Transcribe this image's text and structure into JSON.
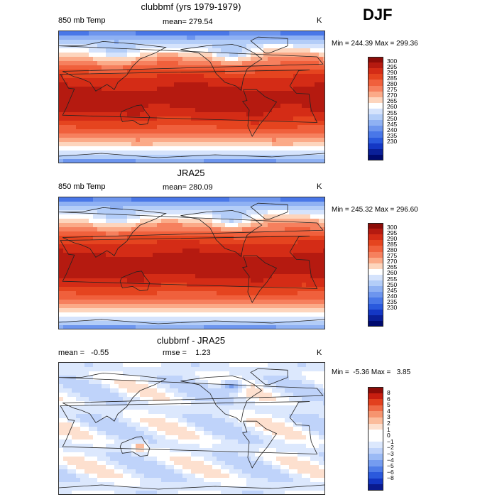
{
  "season_label": "DJF",
  "colors": {
    "warm": [
      "#fff0e6",
      "#fdd0b5",
      "#fbb08f",
      "#f8886a",
      "#f26444",
      "#e94328",
      "#d92d16",
      "#c2240f",
      "#9c1710"
    ],
    "cool": [
      "#e8f0ff",
      "#c7d8fb",
      "#a6c0f7",
      "#84a6f2",
      "#628ced",
      "#4272e6",
      "#2756dc",
      "#163bc4",
      "#0a209a",
      "#000a78"
    ],
    "neutral": "#ffffff"
  },
  "panels": [
    {
      "title": "clubbmf (yrs 1979-1979)",
      "variable": "850 mb Temp",
      "stat_left": "",
      "stat_mid": "mean= 279.54",
      "unit": "K",
      "minmax": "Min = 244.39 Max = 299.36",
      "mode": "abs",
      "colorbar": {
        "labels": [
          "300",
          "295",
          "290",
          "285",
          "280",
          "275",
          "270",
          "265",
          "260",
          "255",
          "250",
          "245",
          "240",
          "235",
          "230"
        ],
        "colors": [
          "#8c0c08",
          "#b51a10",
          "#d42c16",
          "#e5441f",
          "#f0603c",
          "#f6805e",
          "#fbaa88",
          "#fdd5bd",
          "#ffffff",
          "#d5e3fc",
          "#b3cdf8",
          "#8fb1f3",
          "#6d95ee",
          "#4977e8",
          "#2a59dd",
          "#1437c4",
          "#0a1f98",
          "#000a6e"
        ]
      }
    },
    {
      "title": "JRA25",
      "variable": "850 mb Temp",
      "stat_left": "",
      "stat_mid": "mean= 280.09",
      "unit": "K",
      "minmax": "Min = 245.32 Max = 296.60",
      "mode": "abs",
      "colorbar": {
        "labels": [
          "300",
          "295",
          "290",
          "285",
          "280",
          "275",
          "270",
          "265",
          "260",
          "255",
          "250",
          "245",
          "240",
          "235",
          "230"
        ],
        "colors": [
          "#8c0c08",
          "#b51a10",
          "#d42c16",
          "#e5441f",
          "#f0603c",
          "#f6805e",
          "#fbaa88",
          "#fdd5bd",
          "#ffffff",
          "#d5e3fc",
          "#b3cdf8",
          "#8fb1f3",
          "#6d95ee",
          "#4977e8",
          "#2a59dd",
          "#1437c4",
          "#0a1f98",
          "#000a6e"
        ]
      }
    },
    {
      "title": "clubbmf - JRA25",
      "variable": "",
      "stat_left": "mean =   -0.55",
      "stat_mid": "rmse =    1.23",
      "unit": "K",
      "minmax": "Min =  -5.36 Max =   3.85",
      "mode": "diff",
      "colorbar": {
        "labels": [
          "8",
          "6",
          "5",
          "4",
          "3",
          "2",
          "1",
          "0",
          "−1",
          "−2",
          "−3",
          "−4",
          "−5",
          "−6",
          "−8"
        ],
        "colors": [
          "#8c0c08",
          "#c81e10",
          "#e2401e",
          "#ef6a46",
          "#f6946f",
          "#fbbc9c",
          "#fde0cf",
          "#ffffff",
          "#ffffff",
          "#dce8fd",
          "#bfd3fa",
          "#9bbaf5",
          "#759cf0",
          "#4f7ce8",
          "#2b59dc",
          "#1335c2",
          "#0a1a8e"
        ]
      }
    }
  ]
}
